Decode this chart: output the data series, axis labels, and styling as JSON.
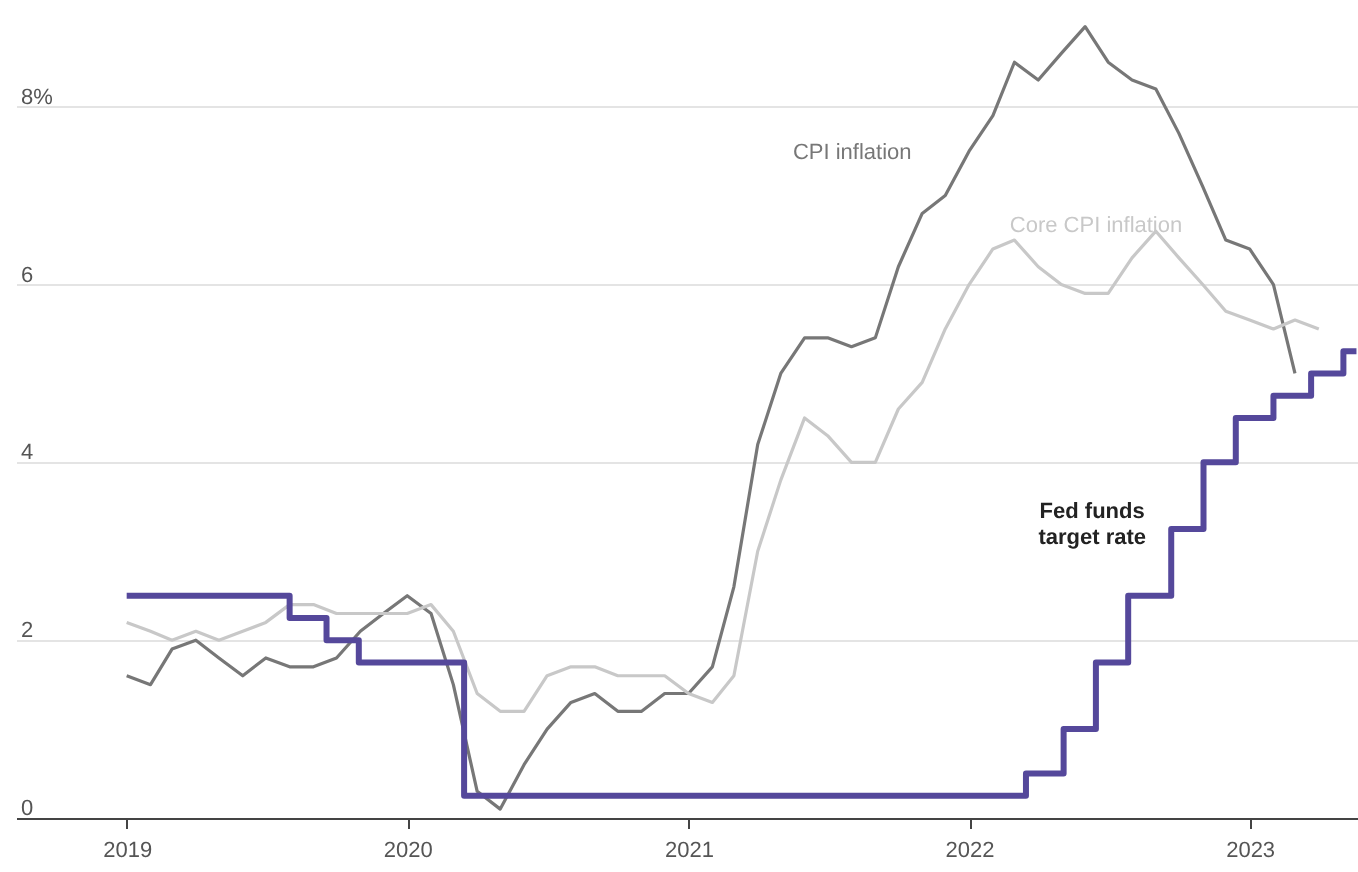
{
  "chart_data": {
    "type": "line",
    "xlim": [
      "2018-08-10",
      "2023-05-22"
    ],
    "ylim": [
      0,
      9.2
    ],
    "xticks": [
      "2019",
      "2020",
      "2021",
      "2022",
      "2023"
    ],
    "yticks": [
      0,
      2,
      4,
      6,
      {
        "value": 8,
        "label": "8%"
      }
    ],
    "grid": "y",
    "legend": false,
    "marker": "none",
    "line_style": "solid",
    "series": [
      {
        "name": "CPI inflation",
        "color": "#777777",
        "x": [
          "2019-01",
          "2019-02",
          "2019-03",
          "2019-04",
          "2019-05",
          "2019-06",
          "2019-07",
          "2019-08",
          "2019-09",
          "2019-10",
          "2019-11",
          "2019-12",
          "2020-01",
          "2020-02",
          "2020-03",
          "2020-04",
          "2020-05",
          "2020-06",
          "2020-07",
          "2020-08",
          "2020-09",
          "2020-10",
          "2020-11",
          "2020-12",
          "2021-01",
          "2021-02",
          "2021-03",
          "2021-04",
          "2021-05",
          "2021-06",
          "2021-07",
          "2021-08",
          "2021-09",
          "2021-10",
          "2021-11",
          "2021-12",
          "2022-01",
          "2022-02",
          "2022-03",
          "2022-04",
          "2022-05",
          "2022-06",
          "2022-07",
          "2022-08",
          "2022-09",
          "2022-10",
          "2022-11",
          "2022-12",
          "2023-01",
          "2023-02",
          "2023-03"
        ],
        "values": [
          1.6,
          1.5,
          1.9,
          2.0,
          1.8,
          1.6,
          1.8,
          1.7,
          1.7,
          1.8,
          2.1,
          2.3,
          2.5,
          2.3,
          1.5,
          0.3,
          0.1,
          0.6,
          1.0,
          1.3,
          1.4,
          1.2,
          1.2,
          1.4,
          1.4,
          1.7,
          2.6,
          4.2,
          5.0,
          5.4,
          5.4,
          5.3,
          5.4,
          6.2,
          6.8,
          7.0,
          7.5,
          7.9,
          8.5,
          8.3,
          8.6,
          8.9,
          8.5,
          8.3,
          8.2,
          7.7,
          7.1,
          6.5,
          6.4,
          6.0,
          5.0
        ]
      },
      {
        "name": "Core CPI inflation",
        "color": "#c8c8c8",
        "x": [
          "2019-01",
          "2019-02",
          "2019-03",
          "2019-04",
          "2019-05",
          "2019-06",
          "2019-07",
          "2019-08",
          "2019-09",
          "2019-10",
          "2019-11",
          "2019-12",
          "2020-01",
          "2020-02",
          "2020-03",
          "2020-04",
          "2020-05",
          "2020-06",
          "2020-07",
          "2020-08",
          "2020-09",
          "2020-10",
          "2020-11",
          "2020-12",
          "2021-01",
          "2021-02",
          "2021-03",
          "2021-04",
          "2021-05",
          "2021-06",
          "2021-07",
          "2021-08",
          "2021-09",
          "2021-10",
          "2021-11",
          "2021-12",
          "2022-01",
          "2022-02",
          "2022-03",
          "2022-04",
          "2022-05",
          "2022-06",
          "2022-07",
          "2022-08",
          "2022-09",
          "2022-10",
          "2022-11",
          "2022-12",
          "2023-01",
          "2023-02",
          "2023-03",
          "2023-04"
        ],
        "values": [
          2.2,
          2.1,
          2.0,
          2.1,
          2.0,
          2.1,
          2.2,
          2.4,
          2.4,
          2.3,
          2.3,
          2.3,
          2.3,
          2.4,
          2.1,
          1.4,
          1.2,
          1.2,
          1.6,
          1.7,
          1.7,
          1.6,
          1.6,
          1.6,
          1.4,
          1.3,
          1.6,
          3.0,
          3.8,
          4.5,
          4.3,
          4.0,
          4.0,
          4.6,
          4.9,
          5.5,
          6.0,
          6.4,
          6.5,
          6.2,
          6.0,
          5.9,
          5.9,
          6.3,
          6.6,
          6.3,
          6.0,
          5.7,
          5.6,
          5.5,
          5.6,
          5.5
        ]
      },
      {
        "name": "Fed funds target rate",
        "type": "step",
        "color": "#55489b",
        "x": [
          "2019-01-01",
          "2019-08-01",
          "2019-09-18",
          "2019-10-30",
          "2020-03-15",
          "2022-03-16",
          "2022-05-04",
          "2022-06-15",
          "2022-07-27",
          "2022-09-21",
          "2022-11-02",
          "2022-12-14",
          "2023-02-01",
          "2023-03-22",
          "2023-05-03",
          "2023-05-20"
        ],
        "values": [
          2.5,
          2.25,
          2.0,
          1.75,
          0.25,
          0.5,
          1.0,
          1.75,
          2.5,
          3.25,
          4.0,
          4.5,
          4.75,
          5.0,
          5.25,
          5.25
        ]
      }
    ]
  }
}
